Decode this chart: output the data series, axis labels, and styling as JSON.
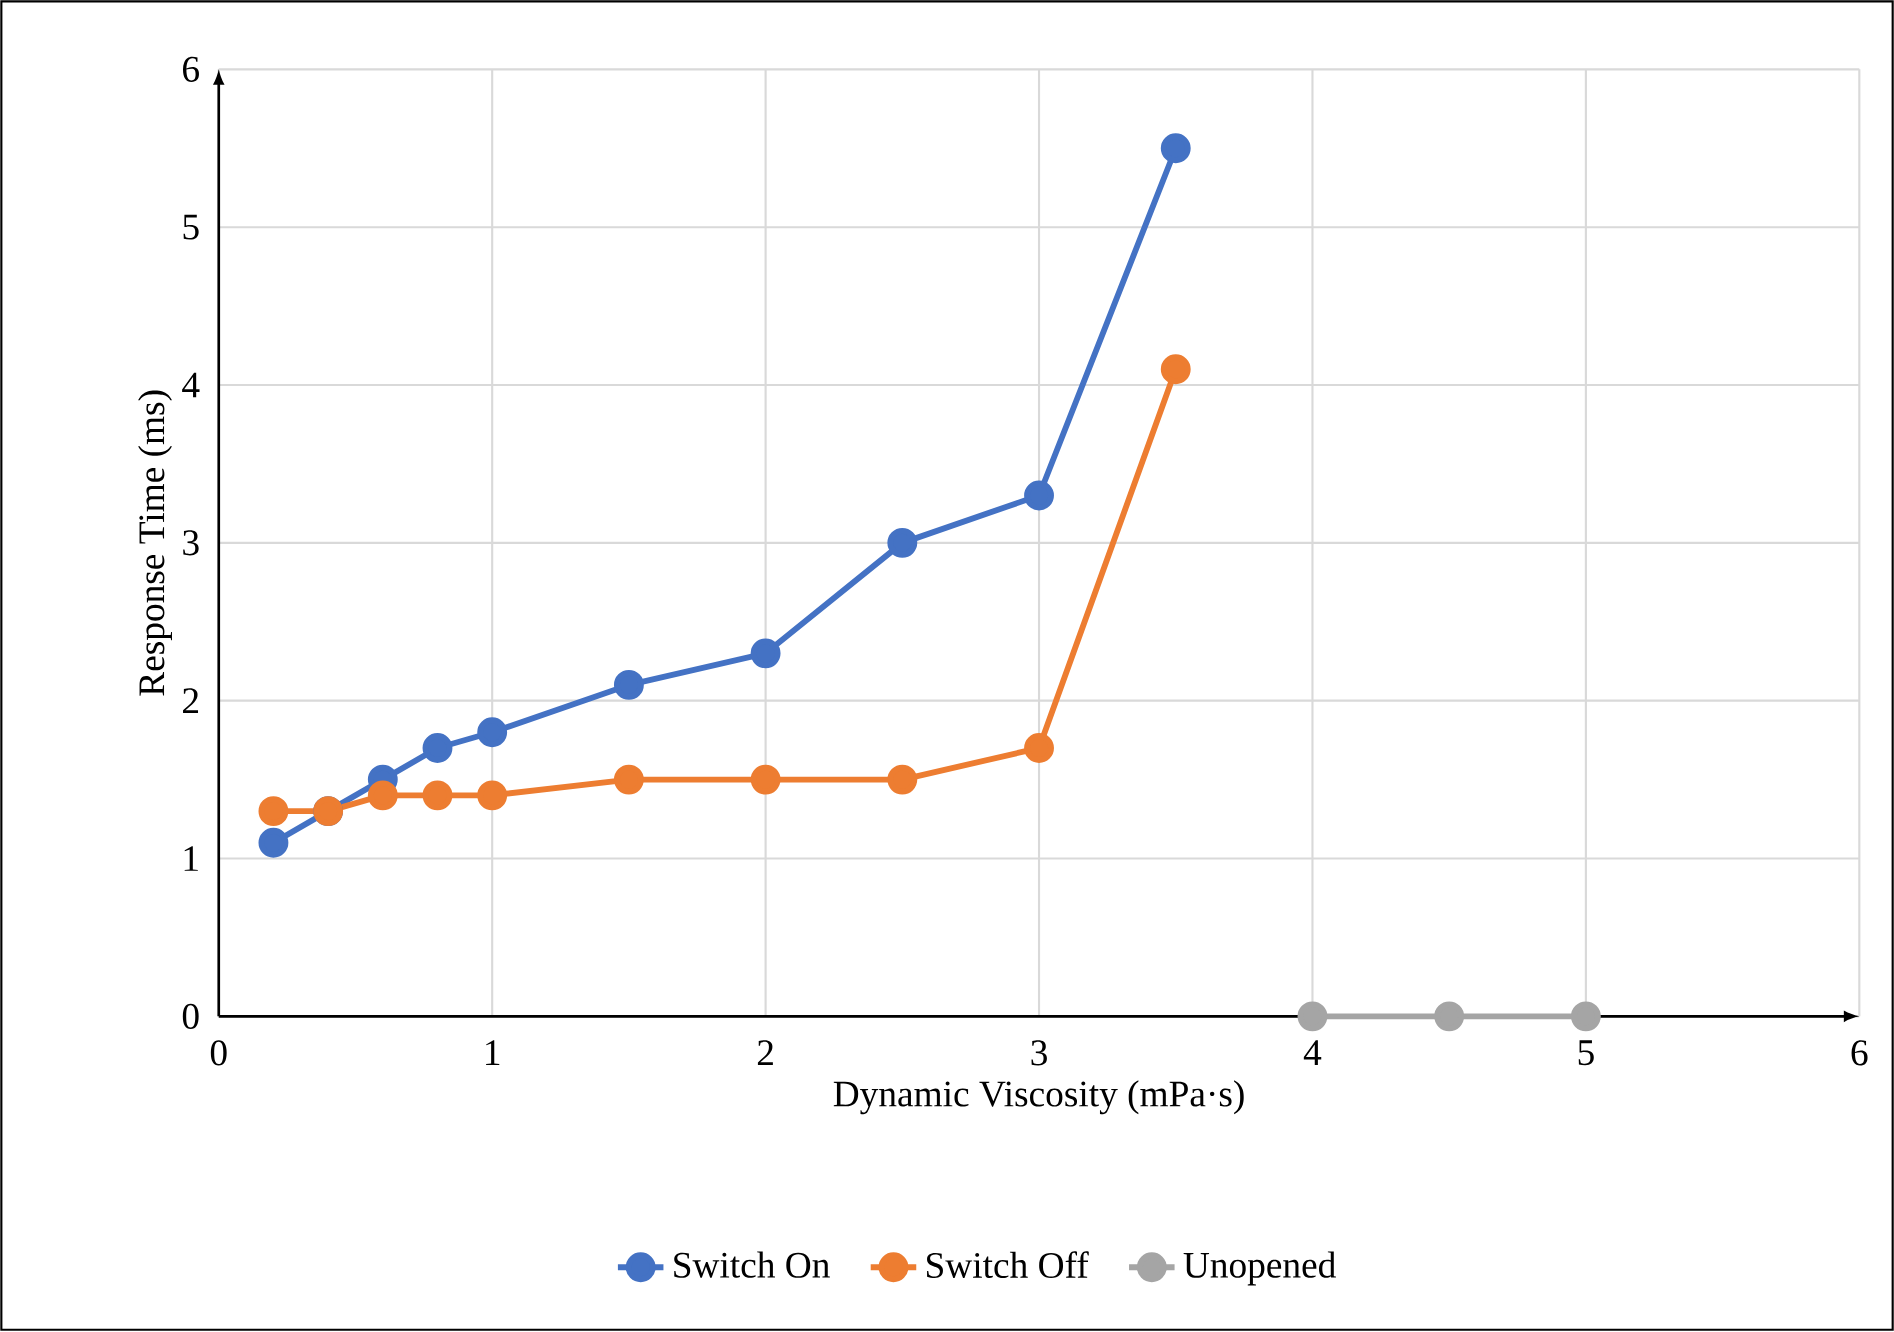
{
  "chart_data": {
    "type": "line",
    "xlabel": "Dynamic Viscosity (mPa·s)",
    "ylabel": "Response Time (ms)",
    "xlim": [
      0,
      6
    ],
    "ylim": [
      0,
      6
    ],
    "xticks": [
      0,
      1,
      2,
      3,
      4,
      5,
      6
    ],
    "yticks": [
      0,
      1,
      2,
      3,
      4,
      5,
      6
    ],
    "grid": true,
    "legend": "bottom",
    "marker": "circle",
    "line_style": "solid",
    "series": [
      {
        "name": "Switch On",
        "color": "#4472c4",
        "x": [
          0.2,
          0.4,
          0.6,
          0.8,
          1,
          1.5,
          2,
          2.5,
          3,
          3.5
        ],
        "values": [
          1.1,
          1.3,
          1.5,
          1.7,
          1.8,
          2.1,
          2.3,
          3.0,
          3.3,
          5.5
        ]
      },
      {
        "name": "Switch Off",
        "color": "#ed7d31",
        "x": [
          0.2,
          0.4,
          0.6,
          0.8,
          1,
          1.5,
          2,
          2.5,
          3,
          3.5
        ],
        "values": [
          1.3,
          1.3,
          1.4,
          1.4,
          1.4,
          1.5,
          1.5,
          1.5,
          1.7,
          4.1
        ]
      },
      {
        "name": "Unopened",
        "color": "#a5a5a5",
        "x": [
          4,
          4.5,
          5
        ],
        "values": [
          0,
          0,
          0
        ]
      }
    ]
  }
}
